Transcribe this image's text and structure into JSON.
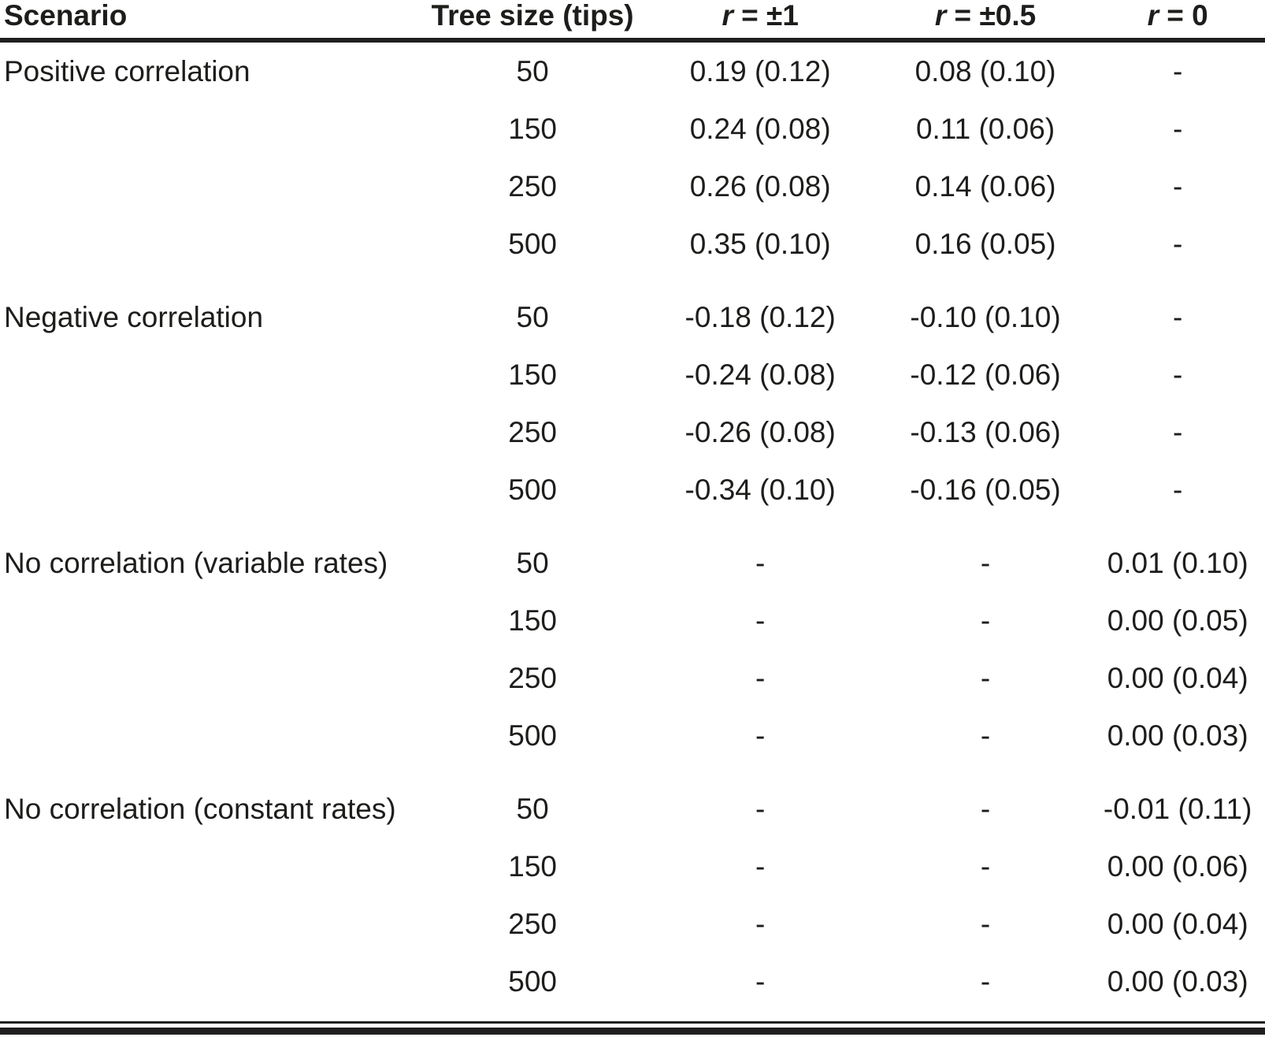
{
  "chart_data": {
    "type": "table",
    "header": {
      "scenario": "Scenario",
      "tree_size": "Tree size (tips)",
      "r1": {
        "var": "r",
        "eq": " = ±1"
      },
      "r05": {
        "var": "r",
        "eq": " = ±0.5"
      },
      "r0": {
        "var": "r",
        "eq": " = 0"
      }
    },
    "rows": [
      {
        "scenario": "Positive correlation",
        "tree_size": "50",
        "r1": "0.19 (0.12)",
        "r05": "0.08 (0.10)",
        "r0": "-",
        "group_start": false
      },
      {
        "scenario": "",
        "tree_size": "150",
        "r1": "0.24 (0.08)",
        "r05": "0.11 (0.06)",
        "r0": "-",
        "group_start": false
      },
      {
        "scenario": "",
        "tree_size": "250",
        "r1": "0.26 (0.08)",
        "r05": "0.14 (0.06)",
        "r0": "-",
        "group_start": false
      },
      {
        "scenario": "",
        "tree_size": "500",
        "r1": "0.35 (0.10)",
        "r05": "0.16 (0.05)",
        "r0": "-",
        "group_start": false
      },
      {
        "scenario": "Negative correlation",
        "tree_size": "50",
        "r1": "-0.18 (0.12)",
        "r05": "-0.10 (0.10)",
        "r0": "-",
        "group_start": true
      },
      {
        "scenario": "",
        "tree_size": "150",
        "r1": "-0.24 (0.08)",
        "r05": "-0.12 (0.06)",
        "r0": "-",
        "group_start": false
      },
      {
        "scenario": "",
        "tree_size": "250",
        "r1": "-0.26 (0.08)",
        "r05": "-0.13 (0.06)",
        "r0": "-",
        "group_start": false
      },
      {
        "scenario": "",
        "tree_size": "500",
        "r1": "-0.34 (0.10)",
        "r05": "-0.16 (0.05)",
        "r0": "-",
        "group_start": false
      },
      {
        "scenario": "No correlation (variable rates)",
        "tree_size": "50",
        "r1": "-",
        "r05": "-",
        "r0": "0.01 (0.10)",
        "group_start": true
      },
      {
        "scenario": "",
        "tree_size": "150",
        "r1": "-",
        "r05": "-",
        "r0": "0.00 (0.05)",
        "group_start": false
      },
      {
        "scenario": "",
        "tree_size": "250",
        "r1": "-",
        "r05": "-",
        "r0": "0.00 (0.04)",
        "group_start": false
      },
      {
        "scenario": "",
        "tree_size": "500",
        "r1": "-",
        "r05": "-",
        "r0": "0.00 (0.03)",
        "group_start": false
      },
      {
        "scenario": "No correlation (constant rates)",
        "tree_size": "50",
        "r1": "-",
        "r05": "-",
        "r0": "-0.01 (0.11)",
        "group_start": true
      },
      {
        "scenario": "",
        "tree_size": "150",
        "r1": "-",
        "r05": "-",
        "r0": "0.00 (0.06)",
        "group_start": false
      },
      {
        "scenario": "",
        "tree_size": "250",
        "r1": "-",
        "r05": "-",
        "r0": "0.00 (0.04)",
        "group_start": false
      },
      {
        "scenario": "",
        "tree_size": "500",
        "r1": "-",
        "r05": "-",
        "r0": "0.00 (0.03)",
        "group_start": false
      }
    ]
  }
}
